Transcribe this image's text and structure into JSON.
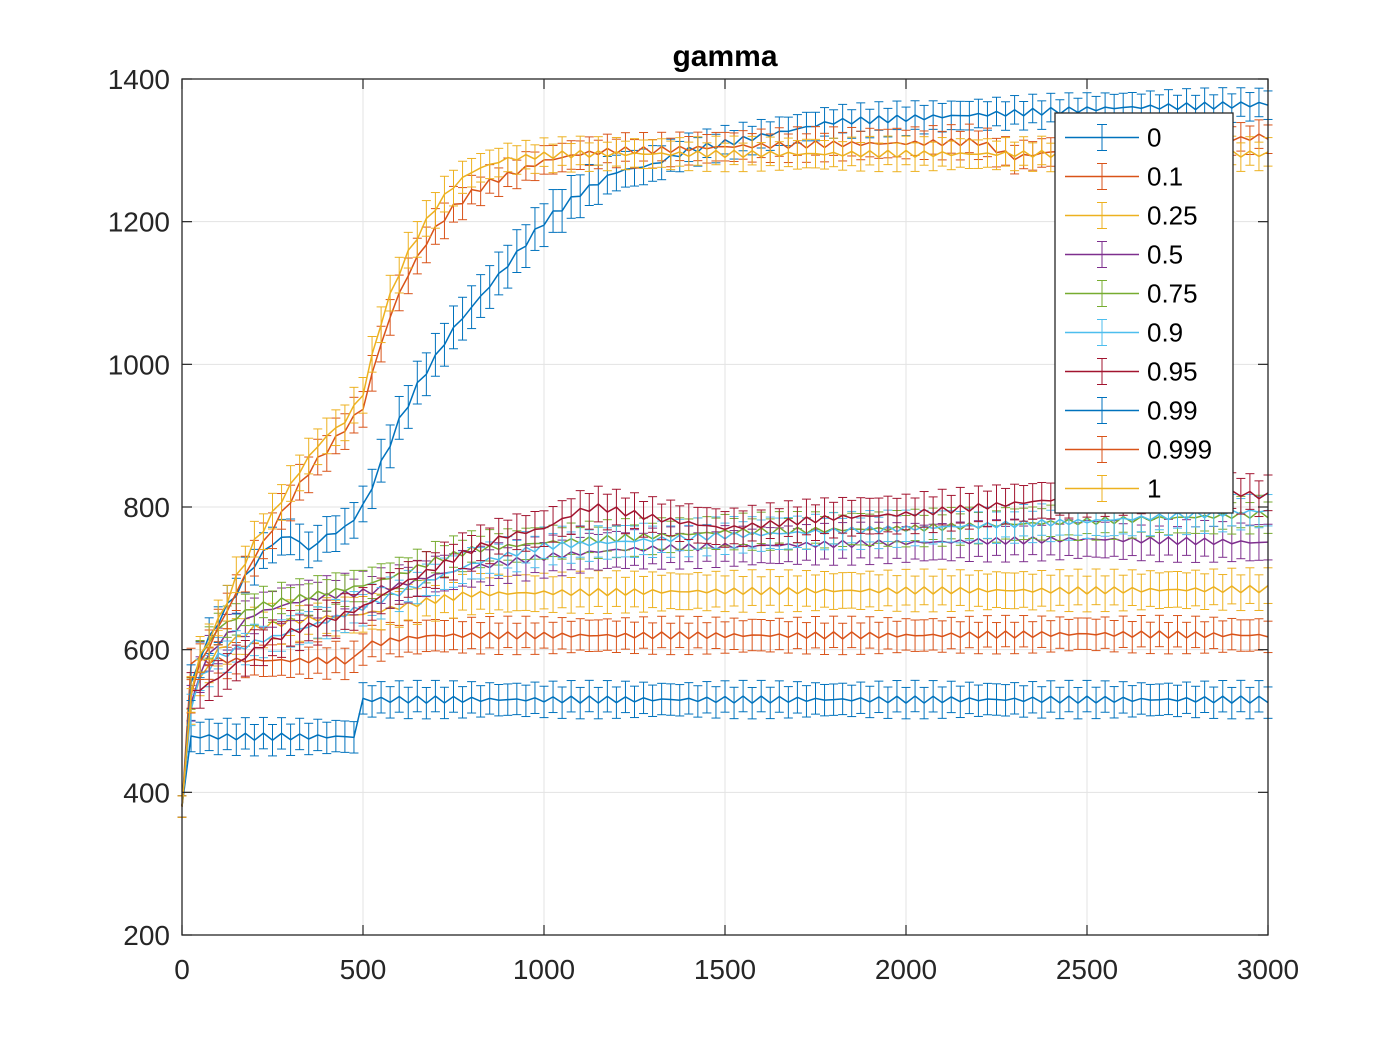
{
  "chart_data": {
    "type": "line",
    "title": "gamma",
    "xlabel": "",
    "ylabel": "",
    "xlim": [
      0,
      3000
    ],
    "ylim": [
      200,
      1400
    ],
    "xticks": [
      0,
      500,
      1000,
      1500,
      2000,
      2500,
      3000
    ],
    "yticks": [
      200,
      400,
      600,
      800,
      1000,
      1200,
      1400
    ],
    "grid": true,
    "legend_position": "top-right",
    "error_bars": true,
    "series": [
      {
        "name": "0",
        "color": "#0072BD",
        "x": [
          0,
          25,
          50,
          100,
          200,
          300,
          400,
          475,
          500,
          600,
          1000,
          1500,
          2000,
          2500,
          3000
        ],
        "y": [
          380,
          478,
          478,
          478,
          478,
          478,
          478,
          478,
          530,
          530,
          530,
          530,
          530,
          530,
          530
        ],
        "err": [
          15,
          22,
          22,
          22,
          22,
          22,
          22,
          22,
          22,
          22,
          22,
          22,
          22,
          22,
          22
        ]
      },
      {
        "name": "0.1",
        "color": "#D95319",
        "x": [
          0,
          25,
          50,
          100,
          200,
          300,
          400,
          475,
          500,
          600,
          700,
          1000,
          1500,
          2000,
          2500,
          3000
        ],
        "y": [
          380,
          585,
          585,
          585,
          585,
          585,
          585,
          585,
          605,
          615,
          620,
          620,
          620,
          620,
          622,
          620
        ],
        "err": [
          15,
          22,
          22,
          22,
          22,
          22,
          22,
          22,
          22,
          22,
          22,
          22,
          22,
          22,
          22,
          22
        ]
      },
      {
        "name": "0.25",
        "color": "#EDB120",
        "x": [
          0,
          25,
          50,
          100,
          200,
          300,
          400,
          500,
          600,
          700,
          800,
          1000,
          1500,
          2000,
          2500,
          3000
        ],
        "y": [
          380,
          520,
          560,
          600,
          630,
          640,
          645,
          650,
          660,
          670,
          678,
          680,
          682,
          683,
          683,
          685
        ],
        "err": [
          15,
          25,
          25,
          25,
          25,
          25,
          25,
          25,
          25,
          25,
          25,
          25,
          25,
          25,
          25,
          25
        ]
      },
      {
        "name": "0.5",
        "color": "#7E2F8E",
        "x": [
          0,
          25,
          50,
          100,
          200,
          300,
          400,
          500,
          600,
          700,
          800,
          1000,
          1200,
          1500,
          2000,
          2500,
          3000
        ],
        "y": [
          380,
          520,
          570,
          610,
          650,
          665,
          675,
          680,
          690,
          705,
          715,
          730,
          740,
          745,
          750,
          755,
          750
        ],
        "err": [
          15,
          25,
          25,
          25,
          25,
          25,
          25,
          25,
          25,
          25,
          25,
          25,
          25,
          25,
          25,
          25,
          25
        ]
      },
      {
        "name": "0.75",
        "color": "#77AC30",
        "x": [
          0,
          25,
          50,
          100,
          200,
          300,
          400,
          500,
          600,
          700,
          800,
          1000,
          1500,
          2000,
          2500,
          3000
        ],
        "y": [
          380,
          540,
          590,
          630,
          660,
          670,
          680,
          690,
          705,
          725,
          740,
          750,
          765,
          770,
          780,
          790
        ],
        "err": [
          15,
          22,
          22,
          22,
          22,
          22,
          22,
          22,
          22,
          22,
          22,
          22,
          22,
          22,
          22,
          22
        ]
      },
      {
        "name": "0.9",
        "color": "#4DBEEE",
        "x": [
          0,
          25,
          50,
          100,
          200,
          300,
          400,
          500,
          600,
          700,
          800,
          1000,
          1500,
          2000,
          2500,
          3000
        ],
        "y": [
          380,
          520,
          560,
          590,
          610,
          625,
          640,
          660,
          680,
          700,
          720,
          745,
          760,
          770,
          780,
          795
        ],
        "err": [
          15,
          22,
          22,
          22,
          22,
          22,
          22,
          22,
          22,
          22,
          22,
          22,
          22,
          22,
          22,
          22
        ]
      },
      {
        "name": "0.95",
        "color": "#A2142F",
        "x": [
          0,
          25,
          50,
          100,
          200,
          300,
          400,
          500,
          600,
          700,
          800,
          900,
          1000,
          1100,
          1150,
          1300,
          1500,
          1800,
          2000,
          2200,
          2500,
          2800,
          3000
        ],
        "y": [
          380,
          540,
          545,
          560,
          600,
          625,
          640,
          660,
          690,
          715,
          740,
          760,
          770,
          795,
          800,
          785,
          770,
          785,
          790,
          800,
          815,
          825,
          815
        ],
        "err": [
          15,
          25,
          25,
          25,
          25,
          25,
          25,
          25,
          25,
          25,
          25,
          25,
          25,
          25,
          25,
          25,
          25,
          25,
          25,
          25,
          25,
          25,
          25
        ]
      },
      {
        "name": "0.99",
        "color": "#0072BD",
        "x": [
          0,
          25,
          50,
          100,
          150,
          200,
          250,
          300,
          350,
          400,
          450,
          500,
          550,
          600,
          650,
          700,
          750,
          800,
          850,
          900,
          950,
          1000,
          1100,
          1200,
          1300,
          1400,
          1500,
          1600,
          1700,
          1800,
          2000,
          2200,
          2400,
          2600,
          2800,
          3000
        ],
        "y": [
          380,
          550,
          590,
          640,
          680,
          720,
          750,
          760,
          740,
          760,
          770,
          800,
          860,
          920,
          970,
          1010,
          1050,
          1080,
          1110,
          1140,
          1170,
          1200,
          1240,
          1270,
          1280,
          1300,
          1310,
          1320,
          1330,
          1340,
          1345,
          1350,
          1355,
          1360,
          1362,
          1365
        ],
        "err": [
          15,
          25,
          25,
          25,
          25,
          25,
          25,
          25,
          25,
          25,
          25,
          25,
          30,
          30,
          30,
          30,
          30,
          30,
          30,
          30,
          30,
          30,
          30,
          25,
          25,
          20,
          20,
          20,
          20,
          20,
          20,
          20,
          20,
          20,
          20,
          20
        ]
      },
      {
        "name": "0.999",
        "color": "#D95319",
        "x": [
          0,
          25,
          50,
          100,
          150,
          200,
          250,
          300,
          350,
          400,
          450,
          500,
          550,
          600,
          650,
          700,
          750,
          800,
          850,
          900,
          1000,
          1100,
          1200,
          1300,
          1500,
          1700,
          2000,
          2200,
          2300,
          2500,
          2800,
          3000
        ],
        "y": [
          380,
          540,
          580,
          630,
          680,
          730,
          770,
          810,
          850,
          880,
          910,
          940,
          1030,
          1100,
          1150,
          1190,
          1220,
          1240,
          1255,
          1265,
          1285,
          1295,
          1300,
          1300,
          1305,
          1308,
          1310,
          1312,
          1290,
          1305,
          1310,
          1320
        ],
        "err": [
          15,
          25,
          25,
          25,
          25,
          25,
          25,
          25,
          25,
          25,
          25,
          25,
          25,
          25,
          25,
          25,
          25,
          20,
          20,
          20,
          20,
          20,
          20,
          20,
          20,
          20,
          20,
          20,
          20,
          20,
          20,
          20
        ]
      },
      {
        "name": "1",
        "color": "#EDB120",
        "x": [
          0,
          25,
          50,
          100,
          150,
          200,
          250,
          300,
          350,
          400,
          450,
          500,
          550,
          600,
          650,
          700,
          750,
          800,
          850,
          900,
          1000,
          1100,
          1200,
          1300,
          1500,
          1700,
          2000,
          2500,
          3000
        ],
        "y": [
          380,
          540,
          590,
          640,
          700,
          750,
          790,
          830,
          870,
          900,
          920,
          960,
          1060,
          1130,
          1180,
          1220,
          1250,
          1270,
          1280,
          1288,
          1293,
          1295,
          1295,
          1295,
          1295,
          1295,
          1295,
          1295,
          1295
        ],
        "err": [
          15,
          25,
          25,
          25,
          25,
          25,
          25,
          25,
          25,
          25,
          25,
          25,
          25,
          25,
          25,
          25,
          25,
          20,
          20,
          20,
          20,
          20,
          20,
          20,
          20,
          20,
          20,
          20,
          20
        ]
      }
    ]
  }
}
